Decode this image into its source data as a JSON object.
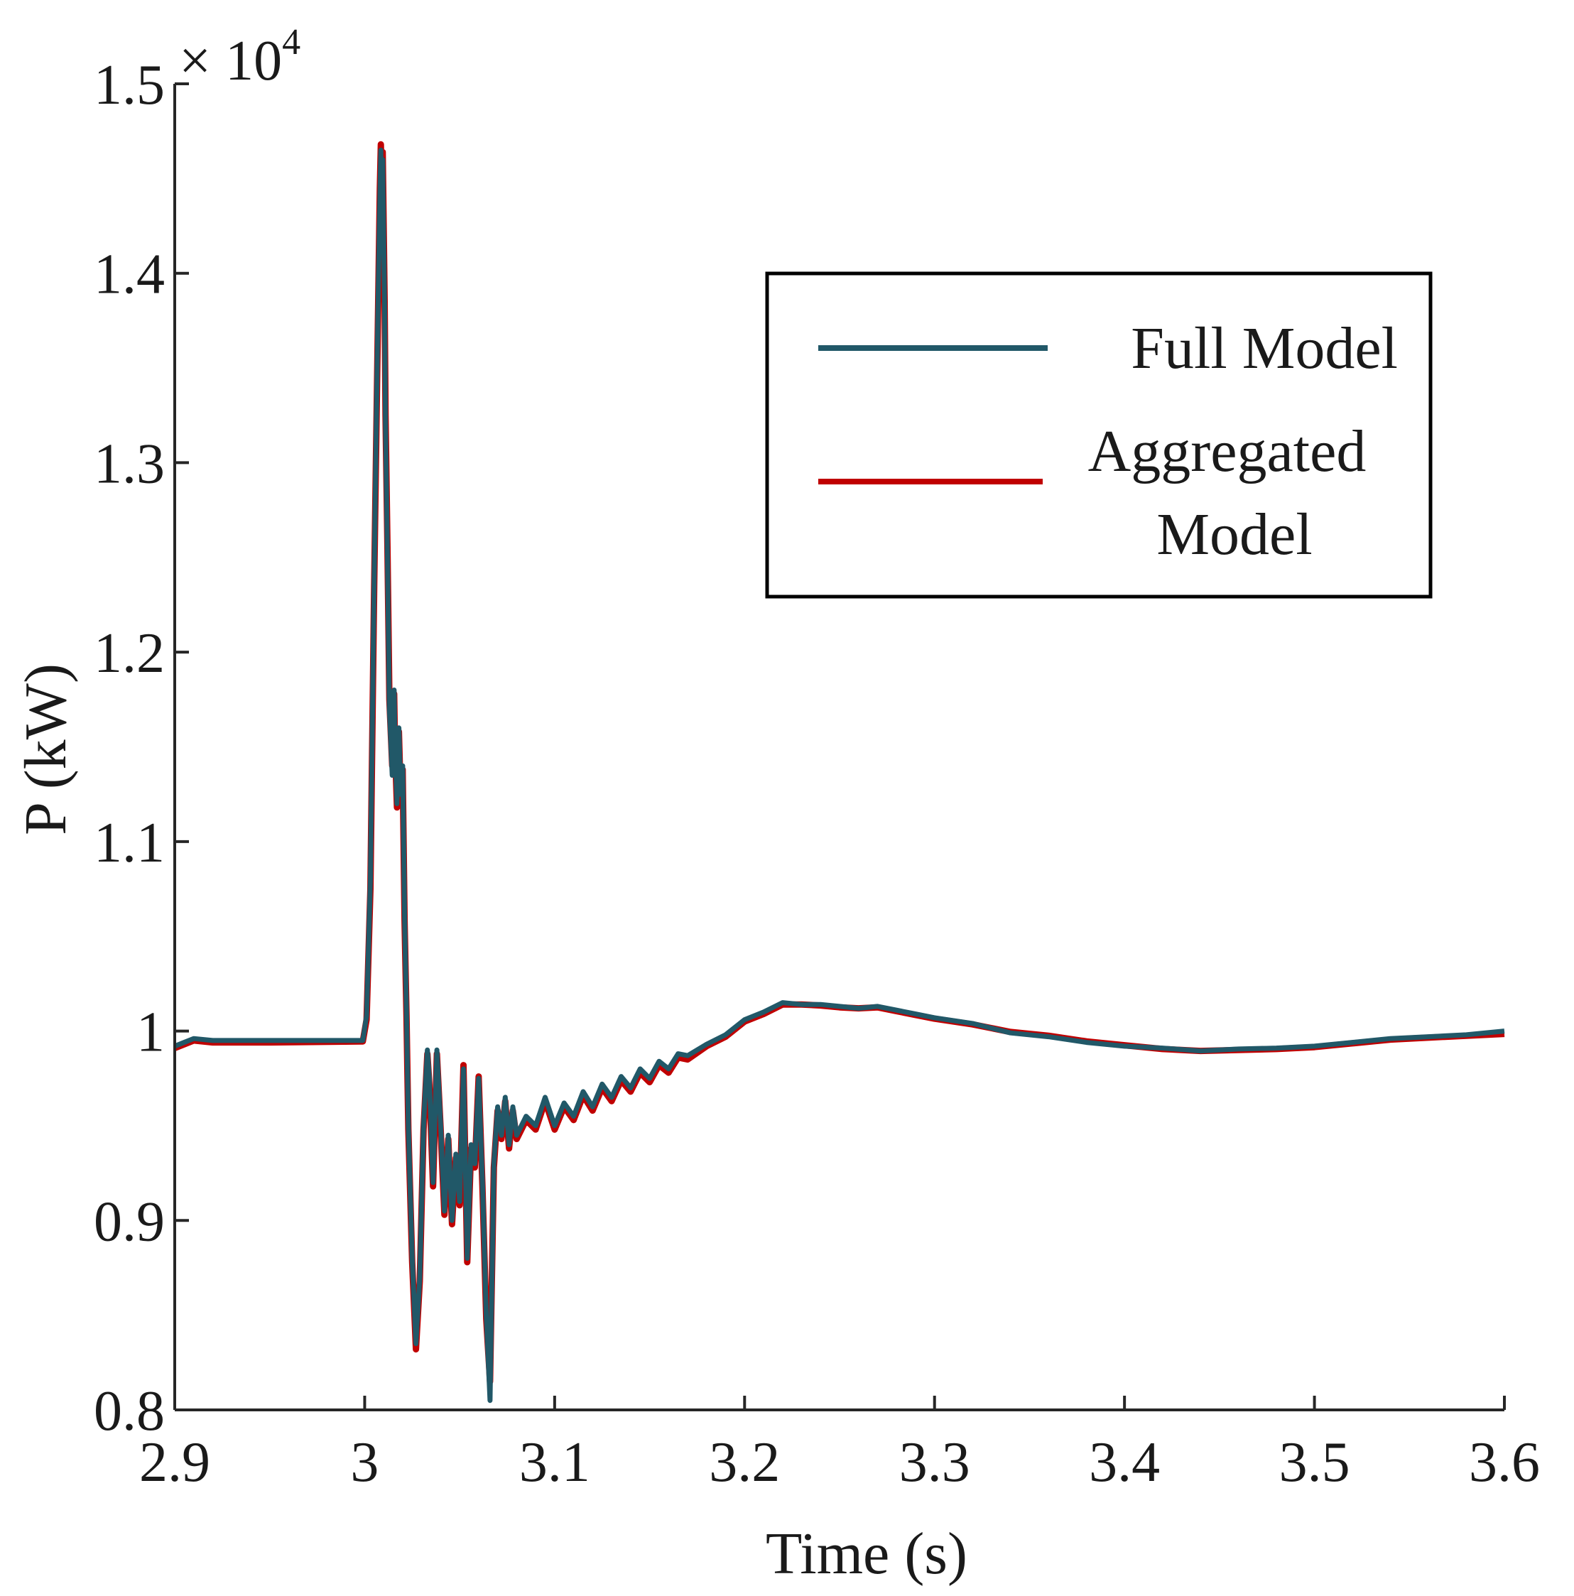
{
  "chart_data": {
    "type": "line",
    "title": "",
    "xlabel": "Time (s)",
    "ylabel": "P (kW)",
    "xlim": [
      2.9,
      3.6
    ],
    "ylim": [
      8000,
      15000
    ],
    "y_multiplier": {
      "base": "× 10",
      "exponent": "4"
    },
    "xticks": [
      2.9,
      3.0,
      3.1,
      3.2,
      3.3,
      3.4,
      3.5,
      3.6
    ],
    "xtick_labels": [
      "2.9",
      "3",
      "3.1",
      "3.2",
      "3.3",
      "3.4",
      "3.5",
      "3.6"
    ],
    "yticks": [
      8000,
      9000,
      10000,
      11000,
      12000,
      13000,
      14000,
      15000
    ],
    "ytick_labels": [
      "0.8",
      "0.9",
      "1",
      "1.1",
      "1.2",
      "1.3",
      "1.4",
      "1.5"
    ],
    "grid": false,
    "legend": "top-right",
    "series": [
      {
        "name": "Full Model",
        "color": "#215868",
        "x": [
          2.9,
          2.91,
          2.92,
          2.95,
          2.999,
          3.001,
          3.003,
          3.005,
          3.007,
          3.008,
          3.0085,
          3.009,
          3.0095,
          3.0105,
          3.011,
          3.012,
          3.013,
          3.0145,
          3.0155,
          3.016,
          3.017,
          3.018,
          3.019,
          3.02,
          3.021,
          3.022,
          3.023,
          3.025,
          3.027,
          3.029,
          3.031,
          3.033,
          3.034,
          3.036,
          3.038,
          3.04,
          3.042,
          3.044,
          3.046,
          3.048,
          3.05,
          3.052,
          3.054,
          3.056,
          3.058,
          3.06,
          3.062,
          3.064,
          3.066,
          3.068,
          3.07,
          3.072,
          3.074,
          3.076,
          3.078,
          3.08,
          3.085,
          3.09,
          3.095,
          3.1,
          3.105,
          3.11,
          3.115,
          3.12,
          3.125,
          3.13,
          3.135,
          3.14,
          3.145,
          3.15,
          3.155,
          3.16,
          3.165,
          3.17,
          3.18,
          3.19,
          3.2,
          3.21,
          3.22,
          3.23,
          3.24,
          3.25,
          3.26,
          3.27,
          3.28,
          3.29,
          3.3,
          3.32,
          3.34,
          3.36,
          3.38,
          3.4,
          3.42,
          3.44,
          3.46,
          3.48,
          3.5,
          3.52,
          3.54,
          3.56,
          3.58,
          3.6
        ],
        "y": [
          9920,
          9960,
          9950,
          9950,
          9950,
          10080,
          10800,
          12400,
          13800,
          14400,
          14650,
          14300,
          14600,
          13800,
          13200,
          12500,
          11700,
          11350,
          11800,
          11500,
          11200,
          11600,
          11250,
          11400,
          10600,
          10100,
          9500,
          8800,
          8350,
          8700,
          9500,
          9900,
          9750,
          9200,
          9900,
          9500,
          9050,
          9450,
          9000,
          9350,
          9100,
          9800,
          8800,
          9400,
          9300,
          9750,
          9200,
          8500,
          8050,
          9300,
          9600,
          9450,
          9650,
          9400,
          9600,
          9450,
          9550,
          9500,
          9650,
          9500,
          9620,
          9550,
          9680,
          9600,
          9720,
          9650,
          9760,
          9700,
          9800,
          9750,
          9840,
          9800,
          9880,
          9870,
          9930,
          9980,
          10060,
          10100,
          10150,
          10140,
          10140,
          10130,
          10120,
          10130,
          10110,
          10090,
          10070,
          10040,
          9990,
          9970,
          9940,
          9920,
          9910,
          9895,
          9905,
          9910,
          9920,
          9940,
          9960,
          9970,
          9980,
          10000
        ]
      },
      {
        "name": "Aggregated Model",
        "color": "#c00000",
        "x": [
          2.9,
          2.91,
          2.92,
          2.95,
          2.999,
          3.001,
          3.003,
          3.005,
          3.007,
          3.008,
          3.0085,
          3.009,
          3.0095,
          3.0105,
          3.011,
          3.012,
          3.013,
          3.0145,
          3.0155,
          3.016,
          3.017,
          3.018,
          3.019,
          3.02,
          3.021,
          3.022,
          3.023,
          3.025,
          3.027,
          3.029,
          3.031,
          3.033,
          3.034,
          3.036,
          3.038,
          3.04,
          3.042,
          3.044,
          3.046,
          3.048,
          3.05,
          3.052,
          3.054,
          3.056,
          3.058,
          3.06,
          3.062,
          3.064,
          3.066,
          3.068,
          3.07,
          3.072,
          3.074,
          3.076,
          3.078,
          3.08,
          3.085,
          3.09,
          3.095,
          3.1,
          3.105,
          3.11,
          3.115,
          3.12,
          3.125,
          3.13,
          3.135,
          3.14,
          3.145,
          3.15,
          3.155,
          3.16,
          3.165,
          3.17,
          3.18,
          3.19,
          3.2,
          3.21,
          3.22,
          3.23,
          3.24,
          3.25,
          3.26,
          3.27,
          3.28,
          3.29,
          3.3,
          3.32,
          3.34,
          3.36,
          3.38,
          3.4,
          3.42,
          3.44,
          3.46,
          3.48,
          3.5,
          3.52,
          3.54,
          3.56,
          3.58,
          3.6
        ],
        "y": [
          9910,
          9950,
          9940,
          9940,
          9945,
          10060,
          10750,
          12350,
          13750,
          14450,
          14680,
          14350,
          14640,
          13850,
          13250,
          12550,
          11750,
          11400,
          11780,
          11480,
          11180,
          11580,
          11230,
          11380,
          10580,
          10080,
          9480,
          8780,
          8320,
          8680,
          9480,
          9880,
          9720,
          9180,
          9880,
          9480,
          9030,
          9430,
          8980,
          9330,
          9080,
          9820,
          8780,
          9380,
          9280,
          9760,
          9180,
          8480,
          8150,
          9280,
          9580,
          9430,
          9630,
          9380,
          9580,
          9430,
          9530,
          9480,
          9630,
          9480,
          9600,
          9530,
          9660,
          9580,
          9700,
          9630,
          9740,
          9680,
          9780,
          9730,
          9820,
          9780,
          9860,
          9850,
          9920,
          9970,
          10050,
          10090,
          10140,
          10140,
          10135,
          10125,
          10120,
          10125,
          10105,
          10085,
          10065,
          10035,
          9995,
          9975,
          9945,
          9925,
          9905,
          9895,
          9900,
          9905,
          9915,
          9935,
          9955,
          9965,
          9975,
          9985
        ]
      }
    ]
  }
}
